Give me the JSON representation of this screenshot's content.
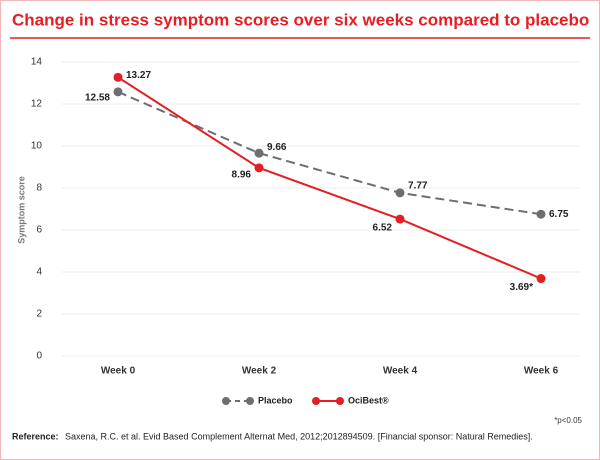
{
  "chart_data": {
    "type": "line",
    "title": "Change in stress symptom scores over six weeks compared to placebo",
    "y_label": "Symptom score",
    "categories": [
      "Week 0",
      "Week 2",
      "Week 4",
      "Week 6"
    ],
    "series": [
      {
        "name": "Placebo",
        "color": "#6d6e71",
        "dashed": true,
        "values": [
          12.58,
          9.66,
          7.77,
          6.75
        ]
      },
      {
        "name": "OciBest®",
        "color": "#e31e24",
        "dashed": false,
        "values": [
          13.27,
          8.96,
          6.52,
          3.69
        ],
        "value_labels": [
          "13.27",
          "8.96",
          "6.52",
          "3.69*"
        ]
      }
    ],
    "ylim": [
      0,
      14
    ],
    "yticks": [
      0,
      2,
      4,
      6,
      8,
      10,
      12,
      14
    ],
    "grid": true,
    "footnote": "*p<0.05",
    "reference": {
      "label": "Reference:",
      "text": "Saxena, R.C. et al. Evid Based Complement Alternat Med, 2012;2012894509. [Financial sponsor: Natural Remedies]."
    }
  }
}
